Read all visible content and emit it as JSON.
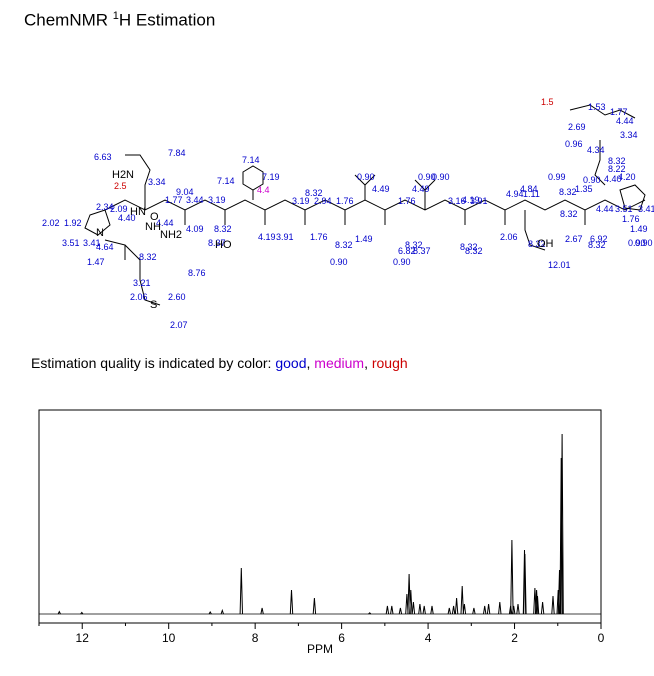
{
  "header": {
    "title_prefix": "ChemNMR ",
    "title_sup": "1",
    "title_suffix": "H Estimation"
  },
  "quality": {
    "label": "Estimation quality is indicated by color: ",
    "good": "good",
    "sep1": ", ",
    "medium": "medium",
    "sep2": ", ",
    "rough": "rough",
    "colors": {
      "good": "#0000cc",
      "medium": "#cc00cc",
      "rough": "#cc0000"
    }
  },
  "structure": {
    "atoms": [
      "H2N",
      "HN",
      "NH2",
      "HO",
      "OH",
      "S",
      "O",
      "N",
      "NH"
    ],
    "blue_shifts": [
      "7.84",
      "6.63",
      "3.34",
      "9.04",
      "1.77",
      "3.44",
      "3.19",
      "7.14",
      "7.14",
      "7.19",
      "8.32",
      "3.19",
      "2.94",
      "1.76",
      "0.90",
      "4.49",
      "0.90",
      "1.76",
      "4.49",
      "0.90",
      "4.19",
      "3.16",
      "3.91",
      "4.94",
      "1.11",
      "0.99",
      "8.32",
      "1.35",
      "1.53",
      "1.77",
      "4.44",
      "3.34",
      "2.34",
      "2.09",
      "2.02",
      "1.92",
      "4.40",
      "4.44",
      "4.09",
      "8.32",
      "8.37",
      "3.51",
      "3.41",
      "4.64",
      "1.47",
      "8.32",
      "3.21",
      "2.06",
      "2.60",
      "2.07",
      "8.76",
      "4.19",
      "3.91",
      "1.76",
      "1.49",
      "8.32",
      "0.90",
      "8.32",
      "6.82",
      "8.37",
      "0.90",
      "8.32",
      "8.32",
      "2.06",
      "8.32",
      "2.67",
      "12.01",
      "6.92",
      "8.32",
      "0.90",
      "2.69",
      "0.96",
      "4.34",
      "8.32",
      "0.90",
      "8.22",
      "1.76",
      "1.49",
      "0.90",
      "3.51",
      "3.41",
      "4.44",
      "4.40",
      "8.32",
      "4.20",
      "4.84"
    ],
    "rough_shifts": [
      "2.5",
      "1.5"
    ],
    "medium_shifts": [
      "4.4"
    ]
  },
  "chart_data": {
    "type": "line",
    "title": "",
    "xlabel": "PPM",
    "ylabel": "",
    "xlim": [
      13,
      0
    ],
    "x_reversed": true,
    "ylim": [
      0,
      1
    ],
    "x_ticks": [
      "12",
      "10",
      "8",
      "6",
      "4",
      "2",
      "0"
    ],
    "grid": false,
    "line_color": "#000000",
    "peaks": [
      {
        "ppm": 12.53,
        "height": 0.012
      },
      {
        "ppm": 12.01,
        "height": 0.008
      },
      {
        "ppm": 9.04,
        "height": 0.01
      },
      {
        "ppm": 8.76,
        "height": 0.018
      },
      {
        "ppm": 8.32,
        "height": 0.23
      },
      {
        "ppm": 7.84,
        "height": 0.03
      },
      {
        "ppm": 7.16,
        "height": 0.12
      },
      {
        "ppm": 6.63,
        "height": 0.08
      },
      {
        "ppm": 5.35,
        "height": 0.006
      },
      {
        "ppm": 4.94,
        "height": 0.04
      },
      {
        "ppm": 4.84,
        "height": 0.04
      },
      {
        "ppm": 4.64,
        "height": 0.03
      },
      {
        "ppm": 4.49,
        "height": 0.1
      },
      {
        "ppm": 4.44,
        "height": 0.2
      },
      {
        "ppm": 4.4,
        "height": 0.12
      },
      {
        "ppm": 4.34,
        "height": 0.06
      },
      {
        "ppm": 4.19,
        "height": 0.05
      },
      {
        "ppm": 4.09,
        "height": 0.04
      },
      {
        "ppm": 3.91,
        "height": 0.04
      },
      {
        "ppm": 3.51,
        "height": 0.03
      },
      {
        "ppm": 3.41,
        "height": 0.04
      },
      {
        "ppm": 3.34,
        "height": 0.08
      },
      {
        "ppm": 3.21,
        "height": 0.14
      },
      {
        "ppm": 3.16,
        "height": 0.05
      },
      {
        "ppm": 2.94,
        "height": 0.03
      },
      {
        "ppm": 2.69,
        "height": 0.04
      },
      {
        "ppm": 2.6,
        "height": 0.05
      },
      {
        "ppm": 2.34,
        "height": 0.06
      },
      {
        "ppm": 2.09,
        "height": 0.04
      },
      {
        "ppm": 2.06,
        "height": 0.37
      },
      {
        "ppm": 2.02,
        "height": 0.04
      },
      {
        "ppm": 1.92,
        "height": 0.05
      },
      {
        "ppm": 1.77,
        "height": 0.32
      },
      {
        "ppm": 1.76,
        "height": 0.3
      },
      {
        "ppm": 1.53,
        "height": 0.13
      },
      {
        "ppm": 1.49,
        "height": 0.12
      },
      {
        "ppm": 1.47,
        "height": 0.09
      },
      {
        "ppm": 1.35,
        "height": 0.06
      },
      {
        "ppm": 1.11,
        "height": 0.09
      },
      {
        "ppm": 0.99,
        "height": 0.12
      },
      {
        "ppm": 0.96,
        "height": 0.22
      },
      {
        "ppm": 0.92,
        "height": 0.78
      },
      {
        "ppm": 0.9,
        "height": 0.9
      }
    ]
  }
}
